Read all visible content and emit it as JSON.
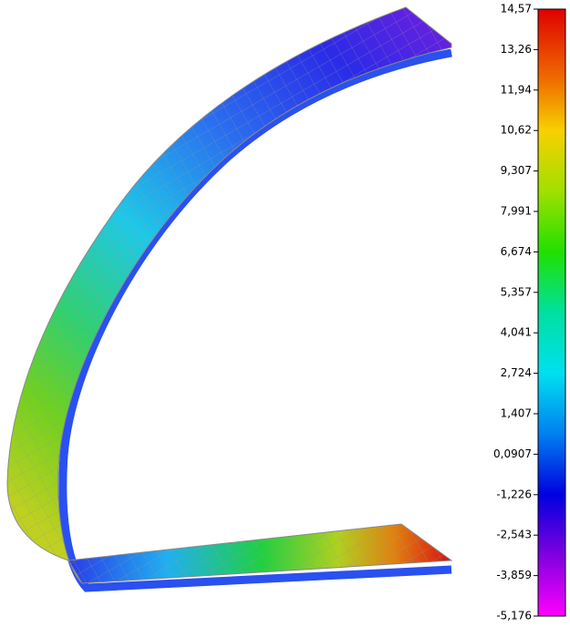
{
  "legend": {
    "labels": [
      "14,57",
      "13,26",
      "11,94",
      "10,62",
      "9,307",
      "7,991",
      "6,674",
      "5,357",
      "4,041",
      "2,724",
      "1,407",
      "0,0907",
      "-1,226",
      "-2,543",
      "-3,859",
      "-5,176"
    ]
  }
}
